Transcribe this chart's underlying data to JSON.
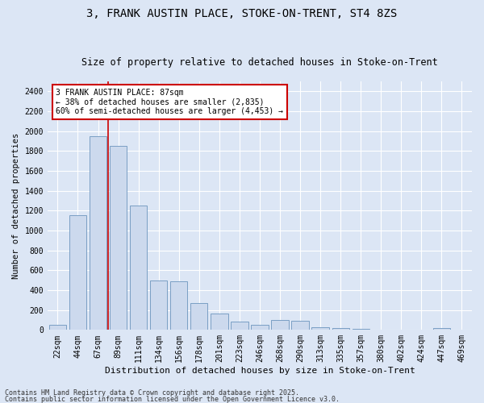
{
  "title1": "3, FRANK AUSTIN PLACE, STOKE-ON-TRENT, ST4 8ZS",
  "title2": "Size of property relative to detached houses in Stoke-on-Trent",
  "xlabel": "Distribution of detached houses by size in Stoke-on-Trent",
  "ylabel": "Number of detached properties",
  "categories": [
    "22sqm",
    "44sqm",
    "67sqm",
    "89sqm",
    "111sqm",
    "134sqm",
    "156sqm",
    "178sqm",
    "201sqm",
    "223sqm",
    "246sqm",
    "268sqm",
    "290sqm",
    "313sqm",
    "335sqm",
    "357sqm",
    "380sqm",
    "402sqm",
    "424sqm",
    "447sqm",
    "469sqm"
  ],
  "values": [
    50,
    1150,
    1950,
    1850,
    1250,
    500,
    490,
    270,
    165,
    80,
    50,
    100,
    90,
    30,
    15,
    10,
    5,
    5,
    5,
    20,
    5
  ],
  "bar_color": "#ccd9ed",
  "bar_edge_color": "#7a9fc4",
  "vline_x_index": 2,
  "vline_color": "#cc0000",
  "annotation_text": "3 FRANK AUSTIN PLACE: 87sqm\n← 38% of detached houses are smaller (2,835)\n60% of semi-detached houses are larger (4,453) →",
  "annotation_box_color": "#ffffff",
  "annotation_box_edge": "#cc0000",
  "ylim": [
    0,
    2500
  ],
  "yticks": [
    0,
    200,
    400,
    600,
    800,
    1000,
    1200,
    1400,
    1600,
    1800,
    2000,
    2200,
    2400
  ],
  "bg_color": "#dce6f5",
  "grid_color": "#ffffff",
  "footer1": "Contains HM Land Registry data © Crown copyright and database right 2025.",
  "footer2": "Contains public sector information licensed under the Open Government Licence v3.0.",
  "title1_fontsize": 10,
  "title2_fontsize": 8.5,
  "xlabel_fontsize": 8,
  "ylabel_fontsize": 7.5,
  "tick_fontsize": 7,
  "annotation_fontsize": 7,
  "footer_fontsize": 6
}
